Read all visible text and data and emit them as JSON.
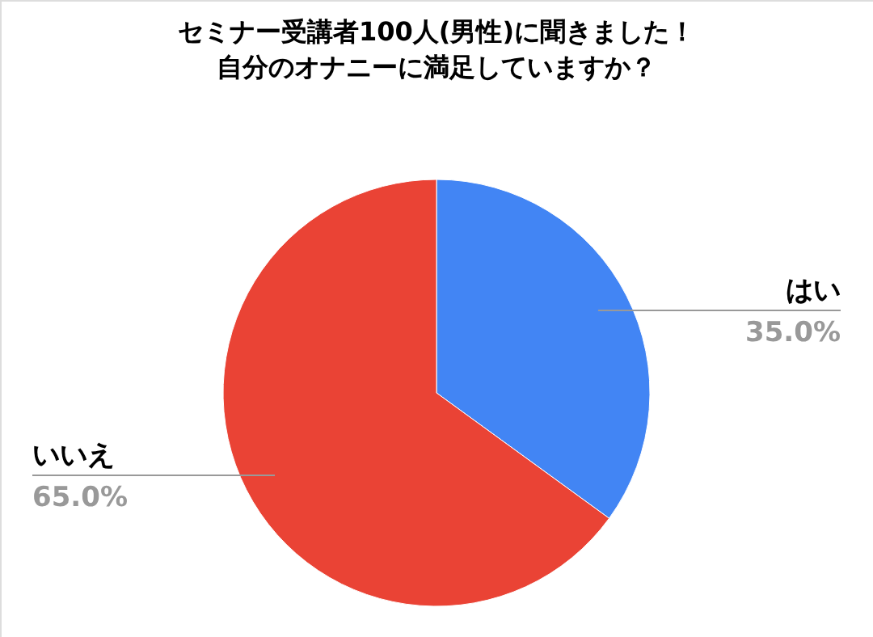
{
  "chart_data": {
    "type": "pie",
    "title": [
      "セミナー受講者100人(男性)に聞きました！",
      "自分のオナニーに満足していますか？"
    ],
    "categories": [
      "はい",
      "いいえ"
    ],
    "values": [
      35,
      65
    ],
    "colors": [
      "#4285f4",
      "#ea4335"
    ],
    "value_labels": [
      "35.0%",
      "65.0%"
    ]
  }
}
